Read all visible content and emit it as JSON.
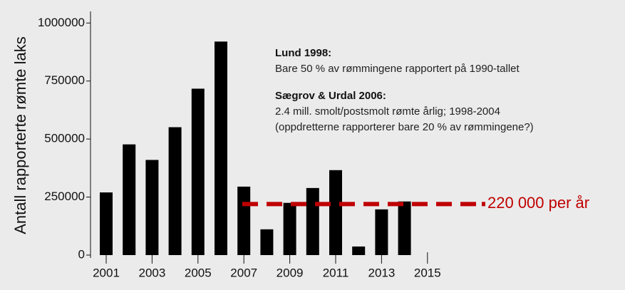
{
  "chart_data": {
    "type": "bar",
    "y_label": "Antall rapporterte rømte laks",
    "categories": [
      "2001",
      null,
      "2003",
      null,
      "2005",
      null,
      "2007",
      null,
      "2009",
      null,
      "2011",
      null,
      "2013",
      null,
      "2015"
    ],
    "values": [
      270000,
      477000,
      410000,
      551000,
      717000,
      920000,
      295000,
      111000,
      225000,
      289000,
      366000,
      37000,
      197000,
      231000,
      null
    ],
    "color": "#000000",
    "ylim": [
      0,
      1050000
    ],
    "yticks": [
      0,
      250000,
      500000,
      750000,
      1000000
    ],
    "reference": {
      "value": 220000,
      "label": "220 000 per år",
      "color": "#c00000"
    },
    "annotations": [
      {
        "title": "Lund 1998:",
        "lines": [
          "Bare 50 % av rømmingene rapportert på 1990-tallet"
        ]
      },
      {
        "title": "Sægrov & Urdal 2006:",
        "lines": [
          "2.4 mill. smolt/postsmolt rømte årlig; 1998-2004",
          "(oppdretterne rapporterer bare 20 % av rømmingene?)"
        ]
      }
    ]
  }
}
